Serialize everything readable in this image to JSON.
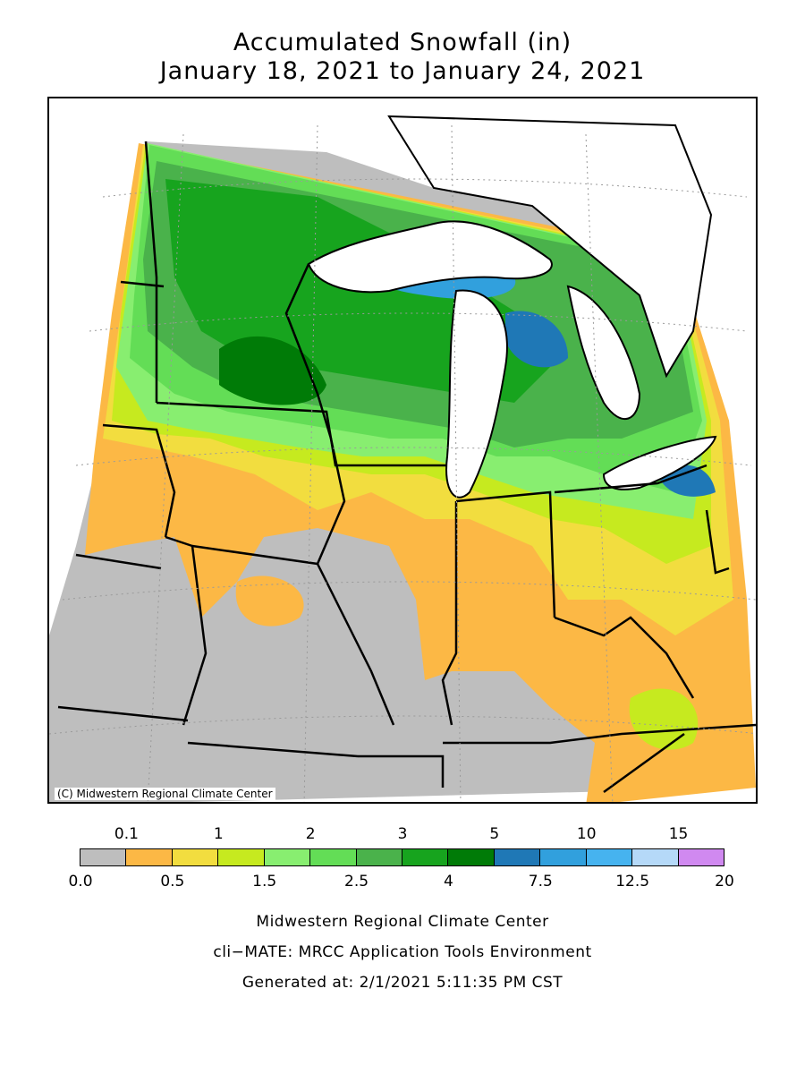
{
  "title_line1": "Accumulated Snowfall (in)",
  "title_line2": "January 18, 2021 to January 24, 2021",
  "copyright": "(C) Midwestern Regional Climate Center",
  "legend": {
    "top_labels": [
      "0.1",
      "1",
      "2",
      "3",
      "5",
      "10",
      "15"
    ],
    "bottom_labels": [
      "0.0",
      "0.5",
      "1.5",
      "2.5",
      "4",
      "7.5",
      "12.5",
      "20"
    ],
    "colors": [
      "#bebebe",
      "#fcb845",
      "#f2dd3f",
      "#c6ea1f",
      "#88ee70",
      "#63dd56",
      "#4ab24b",
      "#17a41e",
      "#007b07",
      "#1f78b6",
      "#31a0dd",
      "#46b3ef",
      "#b5d9f8",
      "#d089f0"
    ]
  },
  "footer": {
    "line1": "Midwestern Regional Climate Center",
    "line2": "cli−MATE: MRCC Application Tools Environment",
    "line3": "Generated at: 2/1/2021 5:11:35 PM CST"
  }
}
